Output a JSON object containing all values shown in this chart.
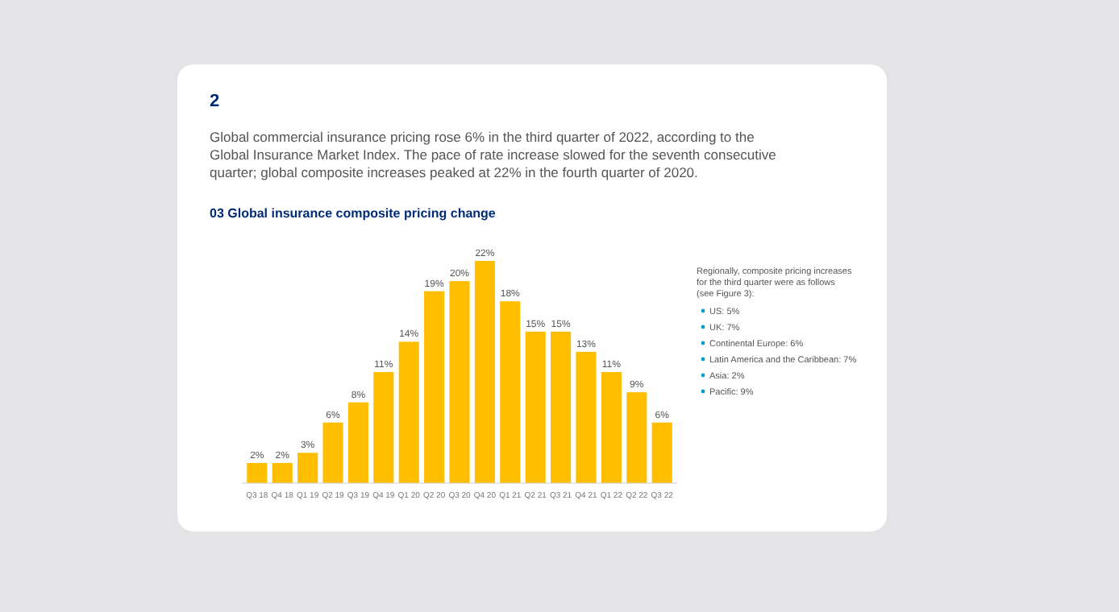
{
  "chart_data": {
    "type": "bar",
    "title": "03 Global insurance composite pricing change",
    "subtitle": "Global commercial insurance pricing rose 6% in the third quarter of 2022, according to the Global Insurance Market Index. The pace of rate increase slowed for the seventh consecutive quarter; global composite increases peaked at 22% in the fourth quarter of 2020.",
    "categories": [
      "Q3 18",
      "Q4 18",
      "Q1 19",
      "Q2 19",
      "Q3 19",
      "Q4 19",
      "Q1 20",
      "Q2 20",
      "Q3 20",
      "Q4 20",
      "Q1 21",
      "Q2 21",
      "Q3 21",
      "Q4 21",
      "Q1 22",
      "Q2 22",
      "Q3 22"
    ],
    "values": [
      2,
      2,
      3,
      6,
      8,
      11,
      14,
      19,
      20,
      22,
      18,
      15,
      15,
      13,
      11,
      9,
      6
    ],
    "value_labels": [
      "2%",
      "2%",
      "3%",
      "6%",
      "8%",
      "11%",
      "14%",
      "19%",
      "20%",
      "22%",
      "18%",
      "15%",
      "15%",
      "13%",
      "11%",
      "9%",
      "6%"
    ],
    "color": "#ffbf00",
    "annotations": [
      "2",
      "Regionally, composite pricing increases for the third quarter were as follows (see Figure 3):",
      "US: 5%",
      "UK: 7%",
      "Continental Europe: 6%",
      "Latin America and the Caribbean: 7%",
      "Asia: 2%",
      "Pacific: 9%"
    ]
  }
}
